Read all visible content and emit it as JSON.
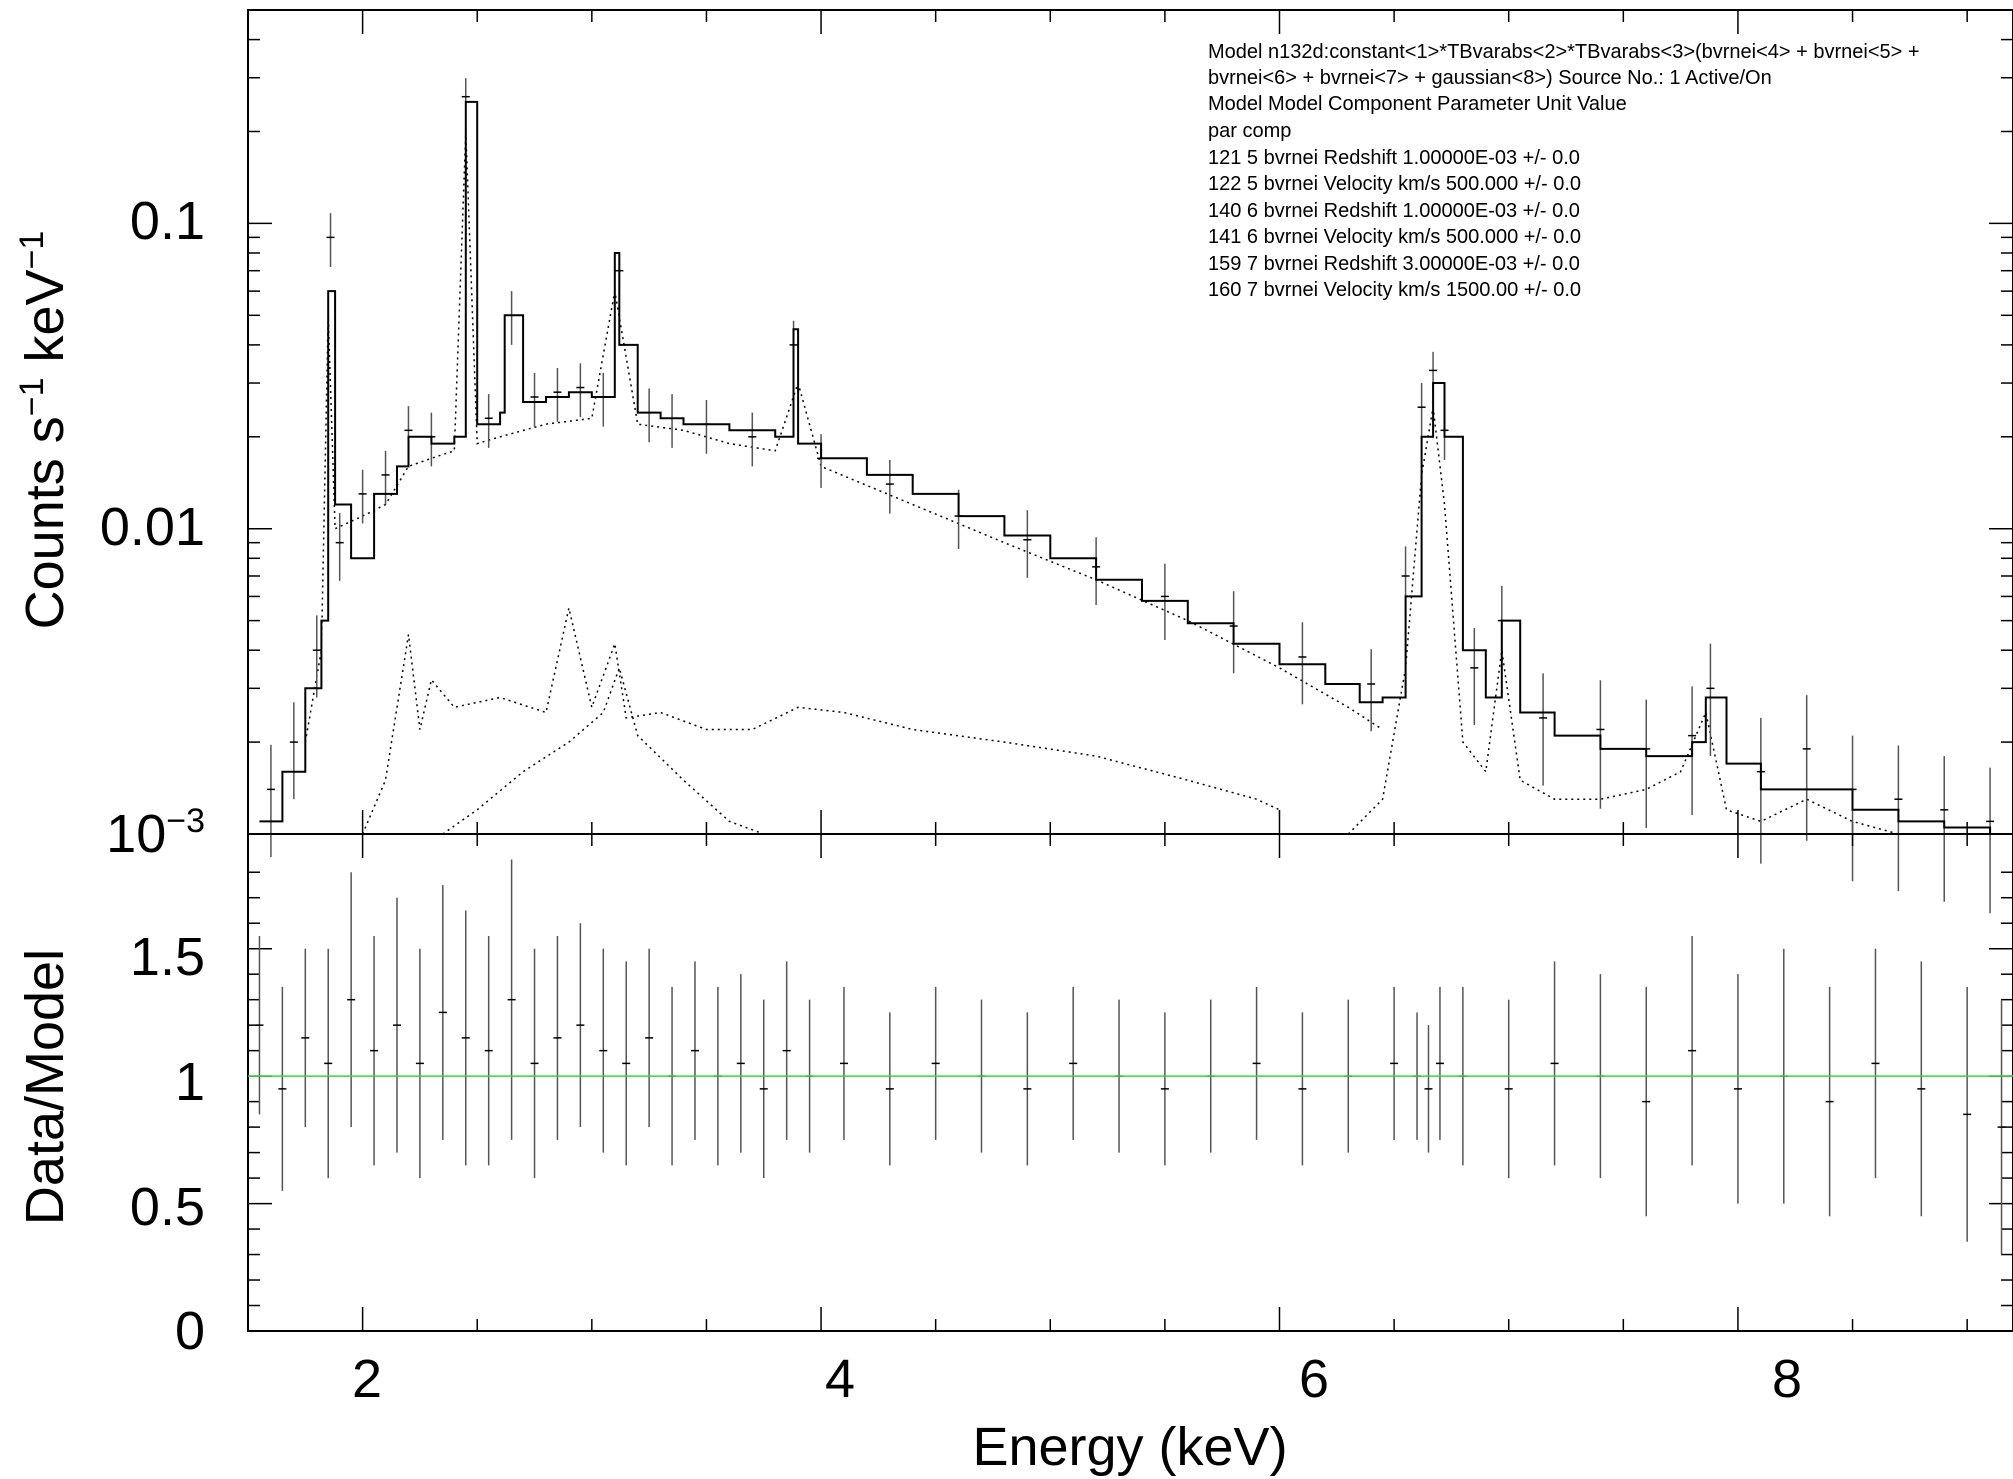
{
  "chart_data": [
    {
      "panel": "spectrum",
      "type": "line",
      "xlabel": "Energy (keV)",
      "ylabel_main": "Counts s",
      "ylabel_exp1": "−1",
      "ylabel_mid": " keV",
      "ylabel_exp2": "−1",
      "yscale": "log",
      "xlim": [
        1.5,
        9.2
      ],
      "ylim": [
        0.001,
        0.5
      ],
      "ytick_labels": {
        "t1": "0.1",
        "t2": "0.01",
        "t3_base": "10",
        "t3_exp": "−3"
      },
      "ytick_values": [
        0.1,
        0.01,
        0.001
      ],
      "model_total": {
        "x": [
          1.55,
          1.65,
          1.75,
          1.82,
          1.85,
          1.88,
          1.95,
          2.05,
          2.15,
          2.2,
          2.3,
          2.4,
          2.45,
          2.5,
          2.6,
          2.62,
          2.7,
          2.8,
          2.9,
          3.0,
          3.1,
          3.12,
          3.2,
          3.3,
          3.4,
          3.6,
          3.8,
          3.88,
          3.9,
          4.0,
          4.2,
          4.4,
          4.6,
          4.8,
          5.0,
          5.2,
          5.4,
          5.6,
          5.8,
          6.0,
          6.2,
          6.35,
          6.45,
          6.55,
          6.62,
          6.67,
          6.72,
          6.8,
          6.9,
          6.97,
          7.05,
          7.2,
          7.4,
          7.6,
          7.8,
          7.86,
          7.95,
          8.1,
          8.3,
          8.5,
          8.7,
          8.9,
          9.1
        ],
        "y": [
          0.0011,
          0.0016,
          0.003,
          0.005,
          0.06,
          0.012,
          0.008,
          0.013,
          0.016,
          0.02,
          0.019,
          0.02,
          0.25,
          0.022,
          0.024,
          0.05,
          0.026,
          0.027,
          0.028,
          0.027,
          0.08,
          0.04,
          0.024,
          0.023,
          0.022,
          0.021,
          0.02,
          0.045,
          0.019,
          0.017,
          0.015,
          0.013,
          0.011,
          0.0095,
          0.008,
          0.0068,
          0.0058,
          0.0049,
          0.0042,
          0.0036,
          0.0031,
          0.0027,
          0.0028,
          0.006,
          0.02,
          0.03,
          0.02,
          0.004,
          0.0028,
          0.005,
          0.0025,
          0.0021,
          0.0019,
          0.0018,
          0.002,
          0.0028,
          0.0017,
          0.0014,
          0.0014,
          0.0012,
          0.0011,
          0.00105,
          0.001
        ]
      },
      "data_errorbars": {
        "x": [
          1.6,
          1.7,
          1.8,
          1.86,
          1.9,
          2.0,
          2.1,
          2.2,
          2.3,
          2.45,
          2.55,
          2.65,
          2.75,
          2.85,
          2.95,
          3.05,
          3.12,
          3.25,
          3.35,
          3.5,
          3.7,
          3.88,
          4.0,
          4.3,
          4.6,
          4.9,
          5.2,
          5.5,
          5.8,
          6.1,
          6.4,
          6.55,
          6.62,
          6.67,
          6.72,
          6.85,
          6.97,
          7.15,
          7.4,
          7.6,
          7.8,
          7.88,
          8.1,
          8.3,
          8.5,
          8.7,
          8.9,
          9.1
        ],
        "y": [
          0.0014,
          0.002,
          0.004,
          0.09,
          0.009,
          0.013,
          0.015,
          0.021,
          0.02,
          0.26,
          0.023,
          0.05,
          0.027,
          0.028,
          0.029,
          0.027,
          0.07,
          0.024,
          0.023,
          0.022,
          0.02,
          0.04,
          0.017,
          0.014,
          0.011,
          0.0092,
          0.0075,
          0.006,
          0.0048,
          0.0038,
          0.0031,
          0.007,
          0.025,
          0.033,
          0.021,
          0.0035,
          0.005,
          0.0024,
          0.0022,
          0.0019,
          0.0021,
          0.003,
          0.0016,
          0.0019,
          0.0014,
          0.0013,
          0.0012,
          0.0011
        ],
        "err": [
          0.4,
          0.35,
          0.3,
          0.2,
          0.25,
          0.2,
          0.2,
          0.2,
          0.2,
          0.15,
          0.2,
          0.2,
          0.2,
          0.2,
          0.2,
          0.2,
          0.15,
          0.2,
          0.2,
          0.2,
          0.2,
          0.2,
          0.2,
          0.2,
          0.22,
          0.25,
          0.25,
          0.28,
          0.3,
          0.3,
          0.3,
          0.25,
          0.2,
          0.15,
          0.2,
          0.35,
          0.3,
          0.4,
          0.45,
          0.45,
          0.45,
          0.4,
          0.5,
          0.5,
          0.5,
          0.5,
          0.5,
          0.5
        ]
      },
      "components": [
        {
          "x": [
            1.75,
            1.82,
            1.85,
            1.88,
            2.0,
            2.1,
            2.2,
            2.3,
            2.4,
            2.45,
            2.5,
            2.6,
            2.8,
            3.0,
            3.1,
            3.2,
            3.4,
            3.6,
            3.8,
            3.9,
            4.0,
            4.4,
            4.8,
            5.2,
            5.6,
            6.0,
            6.3,
            6.45
          ],
          "y": [
            0.002,
            0.004,
            0.05,
            0.01,
            0.011,
            0.012,
            0.016,
            0.017,
            0.018,
            0.2,
            0.019,
            0.02,
            0.022,
            0.023,
            0.06,
            0.022,
            0.021,
            0.019,
            0.018,
            0.03,
            0.016,
            0.012,
            0.009,
            0.0068,
            0.005,
            0.0035,
            0.0026,
            0.0022
          ]
        },
        {
          "x": [
            2.0,
            2.1,
            2.2,
            2.25,
            2.3,
            2.4,
            2.6,
            2.8,
            2.9,
            3.0,
            3.1,
            3.15,
            3.3,
            3.5,
            3.7,
            3.9,
            4.1,
            4.4,
            4.8,
            5.2,
            5.6,
            5.9,
            6.0
          ],
          "y": [
            0.001,
            0.0015,
            0.0045,
            0.0022,
            0.0032,
            0.0026,
            0.0028,
            0.0025,
            0.0055,
            0.0026,
            0.0042,
            0.0024,
            0.0025,
            0.0022,
            0.0022,
            0.0026,
            0.0025,
            0.0022,
            0.002,
            0.0018,
            0.0015,
            0.0013,
            0.0012
          ]
        },
        {
          "x": [
            2.35,
            2.5,
            2.7,
            2.9,
            3.05,
            3.12,
            3.2,
            3.4,
            3.6,
            3.75
          ],
          "y": [
            0.001,
            0.0012,
            0.0016,
            0.002,
            0.0025,
            0.0035,
            0.0021,
            0.0015,
            0.0011,
            0.001
          ]
        },
        {
          "x": [
            6.3,
            6.45,
            6.55,
            6.62,
            6.67,
            6.72,
            6.8,
            6.9,
            6.97,
            7.05,
            7.2,
            7.4,
            7.6,
            7.75,
            7.86,
            7.95,
            8.1,
            8.3,
            8.5,
            8.7,
            8.9,
            9.1
          ],
          "y": [
            0.001,
            0.0013,
            0.0035,
            0.015,
            0.025,
            0.012,
            0.002,
            0.0016,
            0.004,
            0.0015,
            0.0013,
            0.0013,
            0.0014,
            0.0016,
            0.0025,
            0.0012,
            0.0011,
            0.0013,
            0.0011,
            0.001,
            0.001,
            0.001
          ]
        }
      ],
      "info_box": [
        "Model n132d:constant<1>*TBvarabs<2>*TBvarabs<3>(bvrnei<4> + bvrnei<5> +",
        "bvrnei<6> + bvrnei<7> + gaussian<8>) Source No.: 1   Active/On",
        "Model Model Component  Parameter  Unit     Value",
        " par  comp",
        " 121    5   bvrnei     Redshift             1.00000E-03  +/-  0.0",
        " 122    5   bvrnei     Velocity   km/s      500.000      +/-  0.0",
        " 140    6   bvrnei     Redshift             1.00000E-03  +/-  0.0",
        " 141    6   bvrnei     Velocity   km/s      500.000      +/-  0.0",
        " 159    7   bvrnei     Redshift             3.00000E-03  +/-  0.0",
        " 160    7   bvrnei     Velocity   km/s      1500.00      +/-  0.0"
      ]
    },
    {
      "panel": "ratio",
      "type": "scatter",
      "ylabel": "Data/Model",
      "xlabel": "Energy (keV)",
      "xlim": [
        1.5,
        9.2
      ],
      "ylim": [
        0,
        1.95
      ],
      "ytick_values": [
        0,
        0.5,
        1,
        1.5
      ],
      "ytick_labels": [
        "0",
        "0.5",
        "1",
        "1.5"
      ],
      "xtick_values": [
        2,
        4,
        6,
        8
      ],
      "xtick_labels": [
        "2",
        "4",
        "6",
        "8"
      ],
      "reference_line": {
        "y": 1,
        "color": "#33dd33"
      },
      "points": {
        "x": [
          1.55,
          1.65,
          1.75,
          1.85,
          1.95,
          2.05,
          2.15,
          2.25,
          2.35,
          2.45,
          2.55,
          2.65,
          2.75,
          2.85,
          2.95,
          3.05,
          3.15,
          3.25,
          3.35,
          3.45,
          3.55,
          3.65,
          3.75,
          3.85,
          3.95,
          4.1,
          4.3,
          4.5,
          4.7,
          4.9,
          5.1,
          5.3,
          5.5,
          5.7,
          5.9,
          6.1,
          6.3,
          6.5,
          6.6,
          6.65,
          6.7,
          6.8,
          7.0,
          7.2,
          7.4,
          7.6,
          7.8,
          8.0,
          8.2,
          8.4,
          8.6,
          8.8,
          9.0,
          9.15
        ],
        "y": [
          1.2,
          0.95,
          1.15,
          1.05,
          1.3,
          1.1,
          1.2,
          1.05,
          1.25,
          1.15,
          1.1,
          1.3,
          1.05,
          1.15,
          1.2,
          1.1,
          1.05,
          1.15,
          1.0,
          1.1,
          1.0,
          1.05,
          0.95,
          1.1,
          1.0,
          1.05,
          0.95,
          1.05,
          1.0,
          0.95,
          1.05,
          1.0,
          0.95,
          1.0,
          1.05,
          0.95,
          1.0,
          1.05,
          1.0,
          0.95,
          1.05,
          1.0,
          0.95,
          1.05,
          1.0,
          0.9,
          1.1,
          0.95,
          1.0,
          0.9,
          1.05,
          0.95,
          0.85,
          0.8
        ],
        "err": [
          0.35,
          0.4,
          0.35,
          0.45,
          0.5,
          0.45,
          0.5,
          0.45,
          0.5,
          0.5,
          0.45,
          0.55,
          0.45,
          0.4,
          0.4,
          0.4,
          0.4,
          0.35,
          0.35,
          0.35,
          0.35,
          0.35,
          0.35,
          0.35,
          0.3,
          0.3,
          0.3,
          0.3,
          0.3,
          0.3,
          0.3,
          0.3,
          0.3,
          0.3,
          0.3,
          0.3,
          0.3,
          0.3,
          0.25,
          0.25,
          0.3,
          0.35,
          0.35,
          0.4,
          0.4,
          0.45,
          0.45,
          0.45,
          0.5,
          0.45,
          0.45,
          0.5,
          0.5,
          0.5
        ]
      }
    }
  ]
}
